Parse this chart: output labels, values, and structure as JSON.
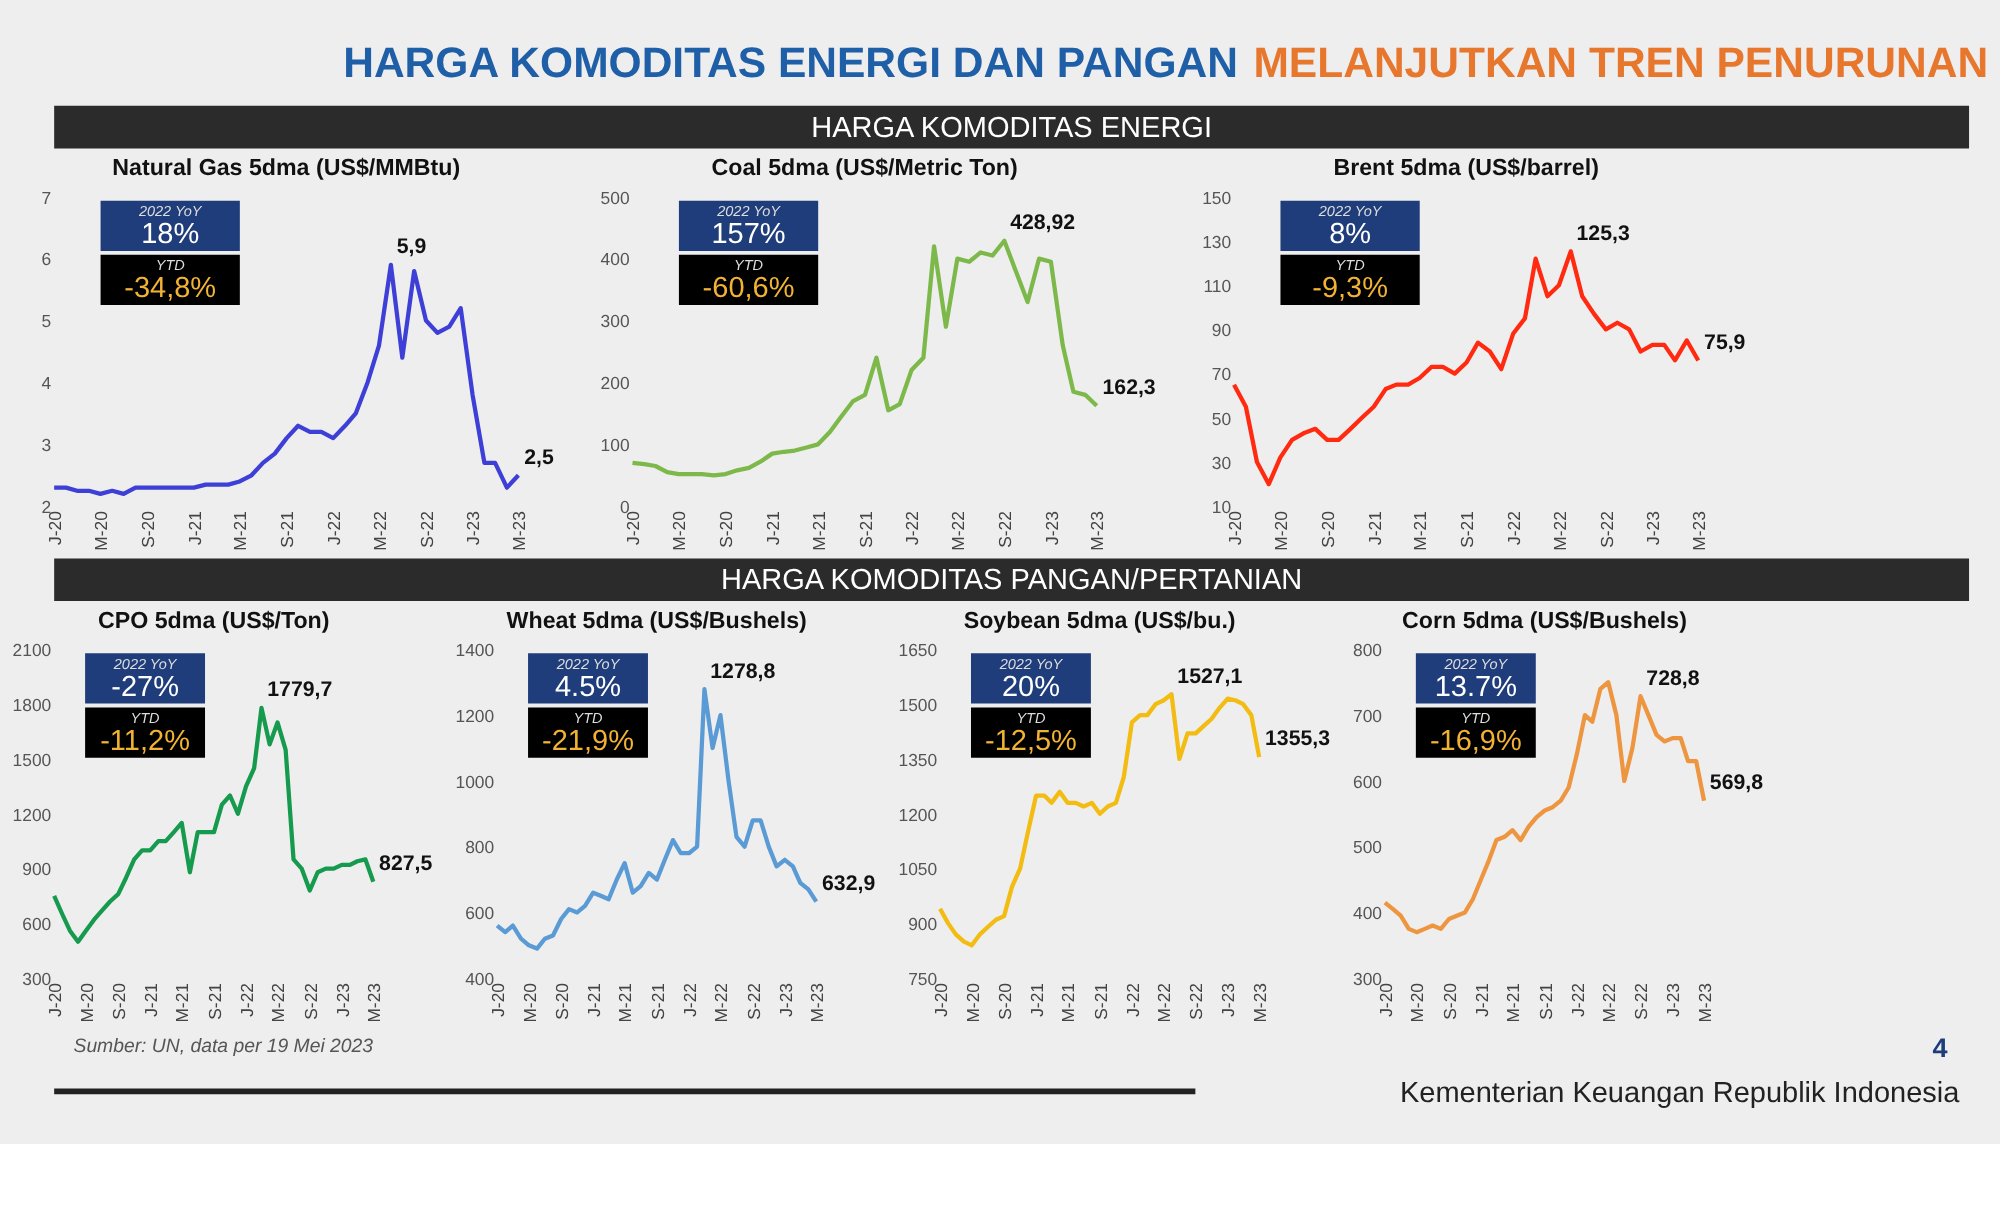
{
  "chart_data": [
    {
      "type": "line",
      "title": "Natural Gas 5dma (US$/MMBtu)",
      "color": "#3d3fd6",
      "x": [
        "2020-01",
        "2020-02",
        "2020-03",
        "2020-04",
        "2020-05",
        "2020-06",
        "2020-07",
        "2020-08",
        "2020-09",
        "2020-10",
        "2020-11",
        "2020-12",
        "2021-01",
        "2021-02",
        "2021-03",
        "2021-04",
        "2021-05",
        "2021-06",
        "2021-07",
        "2021-08",
        "2021-09",
        "2021-10",
        "2021-11",
        "2021-12",
        "2022-01",
        "2022-02",
        "2022-03",
        "2022-04",
        "2022-05",
        "2022-06",
        "2022-07",
        "2022-08",
        "2022-09",
        "2022-10",
        "2022-11",
        "2022-12",
        "2023-01",
        "2023-02",
        "2023-03",
        "2023-04",
        "2023-05"
      ],
      "values": [
        2.3,
        2.3,
        2.25,
        2.25,
        2.2,
        2.25,
        2.2,
        2.3,
        2.3,
        2.3,
        2.3,
        2.3,
        2.3,
        2.35,
        2.35,
        2.35,
        2.4,
        2.5,
        2.7,
        2.85,
        3.1,
        3.3,
        3.2,
        3.2,
        3.1,
        3.3,
        3.5,
        4.0,
        4.6,
        5.9,
        4.4,
        5.8,
        5.0,
        4.8,
        4.9,
        5.2,
        3.8,
        2.7,
        2.7,
        2.3,
        2.5
      ],
      "xlim": [
        "2020-01",
        "2023-05"
      ],
      "ylim": [
        2,
        7
      ],
      "yticks": [
        2,
        3,
        4,
        5,
        6,
        7
      ],
      "xticks": [
        {
          "value": "2020-01",
          "label": "J-20"
        },
        {
          "value": "2020-05",
          "label": "M-20"
        },
        {
          "value": "2020-09",
          "label": "S-20"
        },
        {
          "value": "2021-01",
          "label": "J-21"
        },
        {
          "value": "2021-05",
          "label": "M-21"
        },
        {
          "value": "2021-09",
          "label": "S-21"
        },
        {
          "value": "2022-01",
          "label": "J-22"
        },
        {
          "value": "2022-05",
          "label": "M-22"
        },
        {
          "value": "2022-09",
          "label": "S-22"
        },
        {
          "value": "2023-01",
          "label": "J-23"
        },
        {
          "value": "2023-05",
          "label": "M-23"
        }
      ],
      "annotations": [
        "2022 YoY",
        "18%",
        "YTD",
        "-34,8%",
        {
          "text": "5,9",
          "x": "2022-06",
          "y": 5.9
        },
        {
          "text": "2,5",
          "x": "2023-05",
          "y": 2.5
        }
      ]
    },
    {
      "type": "line",
      "title": "Coal 5dma (US$/Metric Ton)",
      "color": "#7db94a",
      "x": [
        "2020-01",
        "2020-02",
        "2020-03",
        "2020-04",
        "2020-05",
        "2020-06",
        "2020-07",
        "2020-08",
        "2020-09",
        "2020-10",
        "2020-11",
        "2020-12",
        "2021-01",
        "2021-02",
        "2021-03",
        "2021-04",
        "2021-05",
        "2021-06",
        "2021-07",
        "2021-08",
        "2021-09",
        "2021-10",
        "2021-11",
        "2021-12",
        "2022-01",
        "2022-02",
        "2022-03",
        "2022-04",
        "2022-05",
        "2022-06",
        "2022-07",
        "2022-08",
        "2022-09",
        "2022-10",
        "2022-11",
        "2022-12",
        "2023-01",
        "2023-02",
        "2023-03",
        "2023-04",
        "2023-05"
      ],
      "values": [
        70,
        68,
        65,
        55,
        52,
        52,
        52,
        50,
        52,
        58,
        62,
        72,
        85,
        88,
        90,
        95,
        100,
        120,
        145,
        170,
        180,
        240,
        155,
        165,
        220,
        240,
        420,
        290,
        400,
        395,
        410,
        405,
        428.92,
        380,
        330,
        400,
        395,
        260,
        185,
        180,
        162.3
      ],
      "xlim": [
        "2020-01",
        "2023-05"
      ],
      "ylim": [
        0,
        500
      ],
      "yticks": [
        0,
        100,
        200,
        300,
        400,
        500
      ],
      "xticks": [
        {
          "value": "2020-01",
          "label": "J-20"
        },
        {
          "value": "2020-05",
          "label": "M-20"
        },
        {
          "value": "2020-09",
          "label": "S-20"
        },
        {
          "value": "2021-01",
          "label": "J-21"
        },
        {
          "value": "2021-05",
          "label": "M-21"
        },
        {
          "value": "2021-09",
          "label": "S-21"
        },
        {
          "value": "2022-01",
          "label": "J-22"
        },
        {
          "value": "2022-05",
          "label": "M-22"
        },
        {
          "value": "2022-09",
          "label": "S-22"
        },
        {
          "value": "2023-01",
          "label": "J-23"
        },
        {
          "value": "2023-05",
          "label": "M-23"
        }
      ],
      "annotations": [
        "2022 YoY",
        "157%",
        "YTD",
        "-60,6%",
        {
          "text": "428,92",
          "x": "2022-09",
          "y": 428.92
        },
        {
          "text": "162,3",
          "x": "2023-05",
          "y": 162.3
        }
      ]
    },
    {
      "type": "line",
      "title": "Brent 5dma (US$/barrel)",
      "color": "#ff2a10",
      "x": [
        "2020-01",
        "2020-02",
        "2020-03",
        "2020-04",
        "2020-05",
        "2020-06",
        "2020-07",
        "2020-08",
        "2020-09",
        "2020-10",
        "2020-11",
        "2020-12",
        "2021-01",
        "2021-02",
        "2021-03",
        "2021-04",
        "2021-05",
        "2021-06",
        "2021-07",
        "2021-08",
        "2021-09",
        "2021-10",
        "2021-11",
        "2021-12",
        "2022-01",
        "2022-02",
        "2022-03",
        "2022-04",
        "2022-05",
        "2022-06",
        "2022-07",
        "2022-08",
        "2022-09",
        "2022-10",
        "2022-11",
        "2022-12",
        "2023-01",
        "2023-02",
        "2023-03",
        "2023-04",
        "2023-05"
      ],
      "values": [
        65,
        55,
        30,
        20,
        32,
        40,
        43,
        45,
        40,
        40,
        45,
        50,
        55,
        63,
        65,
        65,
        68,
        73,
        73,
        70,
        75,
        84,
        80,
        72,
        88,
        95,
        122,
        105,
        110,
        125.3,
        105,
        97,
        90,
        93,
        90,
        80,
        83,
        83,
        76,
        85,
        75.9
      ],
      "xlim": [
        "2020-01",
        "2023-05"
      ],
      "ylim": [
        10,
        150
      ],
      "yticks": [
        10,
        30,
        50,
        70,
        90,
        110,
        130,
        150
      ],
      "xticks": [
        {
          "value": "2020-01",
          "label": "J-20"
        },
        {
          "value": "2020-05",
          "label": "M-20"
        },
        {
          "value": "2020-09",
          "label": "S-20"
        },
        {
          "value": "2021-01",
          "label": "J-21"
        },
        {
          "value": "2021-05",
          "label": "M-21"
        },
        {
          "value": "2021-09",
          "label": "S-21"
        },
        {
          "value": "2022-01",
          "label": "J-22"
        },
        {
          "value": "2022-05",
          "label": "M-22"
        },
        {
          "value": "2022-09",
          "label": "S-22"
        },
        {
          "value": "2023-01",
          "label": "J-23"
        },
        {
          "value": "2023-05",
          "label": "M-23"
        }
      ],
      "annotations": [
        "2022 YoY",
        "8%",
        "YTD",
        "-9,3%",
        {
          "text": "125,3",
          "x": "2022-06",
          "y": 125.3
        },
        {
          "text": "75,9",
          "x": "2023-05",
          "y": 75.9
        }
      ]
    },
    {
      "type": "line",
      "title": "CPO 5dma (US$/Ton)",
      "color": "#169a4e",
      "x": [
        "2020-01",
        "2020-02",
        "2020-03",
        "2020-04",
        "2020-05",
        "2020-06",
        "2020-07",
        "2020-08",
        "2020-09",
        "2020-10",
        "2020-11",
        "2020-12",
        "2021-01",
        "2021-02",
        "2021-03",
        "2021-04",
        "2021-05",
        "2021-06",
        "2021-07",
        "2021-08",
        "2021-09",
        "2021-10",
        "2021-11",
        "2021-12",
        "2022-01",
        "2022-02",
        "2022-03",
        "2022-04",
        "2022-05",
        "2022-06",
        "2022-07",
        "2022-08",
        "2022-09",
        "2022-10",
        "2022-11",
        "2022-12",
        "2023-01",
        "2023-02",
        "2023-03",
        "2023-04",
        "2023-05"
      ],
      "values": [
        750,
        650,
        560,
        500,
        560,
        620,
        670,
        720,
        760,
        850,
        950,
        1000,
        1000,
        1050,
        1050,
        1100,
        1150,
        880,
        1100,
        1100,
        1100,
        1250,
        1300,
        1200,
        1350,
        1450,
        1779.7,
        1580,
        1700,
        1550,
        950,
        900,
        780,
        880,
        900,
        900,
        920,
        920,
        940,
        950,
        827.5
      ],
      "xlim": [
        "2020-01",
        "2023-05"
      ],
      "ylim": [
        300,
        2100
      ],
      "yticks": [
        300,
        600,
        900,
        1200,
        1500,
        1800,
        2100
      ],
      "xticks": [
        {
          "value": "2020-01",
          "label": "J-20"
        },
        {
          "value": "2020-05",
          "label": "M-20"
        },
        {
          "value": "2020-09",
          "label": "S-20"
        },
        {
          "value": "2021-01",
          "label": "J-21"
        },
        {
          "value": "2021-05",
          "label": "M-21"
        },
        {
          "value": "2021-09",
          "label": "S-21"
        },
        {
          "value": "2022-01",
          "label": "J-22"
        },
        {
          "value": "2022-05",
          "label": "M-22"
        },
        {
          "value": "2022-09",
          "label": "S-22"
        },
        {
          "value": "2023-01",
          "label": "J-23"
        },
        {
          "value": "2023-05",
          "label": "M-23"
        }
      ],
      "annotations": [
        "2022 YoY",
        "-27%",
        "YTD",
        "-11,2%",
        {
          "text": "1779,7",
          "x": "2022-03",
          "y": 1779.7
        },
        {
          "text": "827,5",
          "x": "2023-05",
          "y": 827.5
        }
      ]
    },
    {
      "type": "line",
      "title": "Wheat 5dma (US$/Bushels)",
      "color": "#5a9bd5",
      "x": [
        "2020-01",
        "2020-02",
        "2020-03",
        "2020-04",
        "2020-05",
        "2020-06",
        "2020-07",
        "2020-08",
        "2020-09",
        "2020-10",
        "2020-11",
        "2020-12",
        "2021-01",
        "2021-02",
        "2021-03",
        "2021-04",
        "2021-05",
        "2021-06",
        "2021-07",
        "2021-08",
        "2021-09",
        "2021-10",
        "2021-11",
        "2021-12",
        "2022-01",
        "2022-02",
        "2022-03",
        "2022-04",
        "2022-05",
        "2022-06",
        "2022-07",
        "2022-08",
        "2022-09",
        "2022-10",
        "2022-11",
        "2022-12",
        "2023-01",
        "2023-02",
        "2023-03",
        "2023-04",
        "2023-05"
      ],
      "values": [
        560,
        540,
        560,
        520,
        500,
        490,
        520,
        530,
        580,
        610,
        600,
        620,
        660,
        650,
        640,
        700,
        750,
        660,
        680,
        720,
        700,
        760,
        820,
        780,
        780,
        800,
        1278.8,
        1100,
        1200,
        1000,
        830,
        800,
        880,
        880,
        800,
        740,
        760,
        740,
        690,
        670,
        632.9
      ],
      "xlim": [
        "2020-01",
        "2023-05"
      ],
      "ylim": [
        400,
        1400
      ],
      "yticks": [
        400,
        600,
        800,
        1000,
        1200,
        1400
      ],
      "xticks": [
        {
          "value": "2020-01",
          "label": "J-20"
        },
        {
          "value": "2020-05",
          "label": "M-20"
        },
        {
          "value": "2020-09",
          "label": "S-20"
        },
        {
          "value": "2021-01",
          "label": "J-21"
        },
        {
          "value": "2021-05",
          "label": "M-21"
        },
        {
          "value": "2021-09",
          "label": "S-21"
        },
        {
          "value": "2022-01",
          "label": "J-22"
        },
        {
          "value": "2022-05",
          "label": "M-22"
        },
        {
          "value": "2022-09",
          "label": "S-22"
        },
        {
          "value": "2023-01",
          "label": "J-23"
        },
        {
          "value": "2023-05",
          "label": "M-23"
        }
      ],
      "annotations": [
        "2022 YoY",
        "4.5%",
        "YTD",
        "-21,9%",
        {
          "text": "1278,8",
          "x": "2022-03",
          "y": 1278.8
        },
        {
          "text": "632,9",
          "x": "2023-05",
          "y": 632.9
        }
      ]
    },
    {
      "type": "line",
      "title": "Soybean 5dma (US$/bu.)",
      "color": "#f2bc12",
      "x": [
        "2020-01",
        "2020-02",
        "2020-03",
        "2020-04",
        "2020-05",
        "2020-06",
        "2020-07",
        "2020-08",
        "2020-09",
        "2020-10",
        "2020-11",
        "2020-12",
        "2021-01",
        "2021-02",
        "2021-03",
        "2021-04",
        "2021-05",
        "2021-06",
        "2021-07",
        "2021-08",
        "2021-09",
        "2021-10",
        "2021-11",
        "2021-12",
        "2022-01",
        "2022-02",
        "2022-03",
        "2022-04",
        "2022-05",
        "2022-06",
        "2022-07",
        "2022-08",
        "2022-09",
        "2022-10",
        "2022-11",
        "2022-12",
        "2023-01",
        "2023-02",
        "2023-03",
        "2023-04",
        "2023-05"
      ],
      "values": [
        940,
        900,
        870,
        850,
        840,
        870,
        890,
        910,
        920,
        1000,
        1050,
        1150,
        1250,
        1250,
        1230,
        1260,
        1230,
        1230,
        1220,
        1230,
        1200,
        1220,
        1230,
        1300,
        1450,
        1470,
        1470,
        1500,
        1510,
        1527.1,
        1350,
        1420,
        1420,
        1440,
        1460,
        1490,
        1515,
        1510,
        1500,
        1470,
        1355.3
      ],
      "xlim": [
        "2020-01",
        "2023-05"
      ],
      "ylim": [
        750,
        1650
      ],
      "yticks": [
        750,
        900,
        1050,
        1200,
        1350,
        1500,
        1650
      ],
      "xticks": [
        {
          "value": "2020-01",
          "label": "J-20"
        },
        {
          "value": "2020-05",
          "label": "M-20"
        },
        {
          "value": "2020-09",
          "label": "S-20"
        },
        {
          "value": "2021-01",
          "label": "J-21"
        },
        {
          "value": "2021-05",
          "label": "M-21"
        },
        {
          "value": "2021-09",
          "label": "S-21"
        },
        {
          "value": "2022-01",
          "label": "J-22"
        },
        {
          "value": "2022-05",
          "label": "M-22"
        },
        {
          "value": "2022-09",
          "label": "S-22"
        },
        {
          "value": "2023-01",
          "label": "J-23"
        },
        {
          "value": "2023-05",
          "label": "M-23"
        }
      ],
      "annotations": [
        "2022 YoY",
        "20%",
        "YTD",
        "-12,5%",
        {
          "text": "1527,1",
          "x": "2022-06",
          "y": 1527.1
        },
        {
          "text": "1355,3",
          "x": "2023-05",
          "y": 1355.3
        }
      ]
    },
    {
      "type": "line",
      "title": "Corn 5dma (US$/Bushels)",
      "color": "#ee9540",
      "x": [
        "2020-01",
        "2020-02",
        "2020-03",
        "2020-04",
        "2020-05",
        "2020-06",
        "2020-07",
        "2020-08",
        "2020-09",
        "2020-10",
        "2020-11",
        "2020-12",
        "2021-01",
        "2021-02",
        "2021-03",
        "2021-04",
        "2021-05",
        "2021-06",
        "2021-07",
        "2021-08",
        "2021-09",
        "2021-10",
        "2021-11",
        "2021-12",
        "2022-01",
        "2022-02",
        "2022-03",
        "2022-04",
        "2022-05",
        "2022-06",
        "2022-07",
        "2022-08",
        "2022-09",
        "2022-10",
        "2022-11",
        "2022-12",
        "2023-01",
        "2023-02",
        "2023-03",
        "2023-04",
        "2023-05"
      ],
      "values": [
        415,
        405,
        395,
        375,
        370,
        375,
        380,
        375,
        390,
        395,
        400,
        420,
        450,
        480,
        510,
        515,
        525,
        510,
        530,
        545,
        555,
        560,
        570,
        590,
        640,
        700,
        690,
        740,
        750,
        700,
        600,
        650,
        728.8,
        700,
        670,
        660,
        665,
        665,
        630,
        630,
        569.8
      ],
      "xlim": [
        "2020-01",
        "2023-05"
      ],
      "ylim": [
        300,
        800
      ],
      "yticks": [
        300,
        400,
        500,
        600,
        700,
        800
      ],
      "xticks": [
        {
          "value": "2020-01",
          "label": "J-20"
        },
        {
          "value": "2020-05",
          "label": "M-20"
        },
        {
          "value": "2020-09",
          "label": "S-20"
        },
        {
          "value": "2021-01",
          "label": "J-21"
        },
        {
          "value": "2021-05",
          "label": "M-21"
        },
        {
          "value": "2021-09",
          "label": "S-21"
        },
        {
          "value": "2022-01",
          "label": "J-22"
        },
        {
          "value": "2022-05",
          "label": "M-22"
        },
        {
          "value": "2022-09",
          "label": "S-22"
        },
        {
          "value": "2023-01",
          "label": "J-23"
        },
        {
          "value": "2023-05",
          "label": "M-23"
        }
      ],
      "annotations": [
        "2022 YoY",
        "13.7%",
        "YTD",
        "-16,9%",
        {
          "text": "728,8",
          "x": "2022-09",
          "y": 728.8
        },
        {
          "text": "569,8",
          "x": "2023-05",
          "y": 569.8
        }
      ]
    },
    {
      "type": "other",
      "title": "HARGA KOMODITAS ENERGI DAN PANGAN",
      "subtitle": "MELANJUTKAN TREN PENURUNAN",
      "annotations": [
        "HARGA KOMODITAS ENERGI",
        "HARGA KOMODITAS PANGAN/PERTANIAN",
        "Sumber: UN, data per 19 Mei 2023",
        "4",
        "Kementerian Keuangan Republik Indonesia"
      ]
    }
  ]
}
